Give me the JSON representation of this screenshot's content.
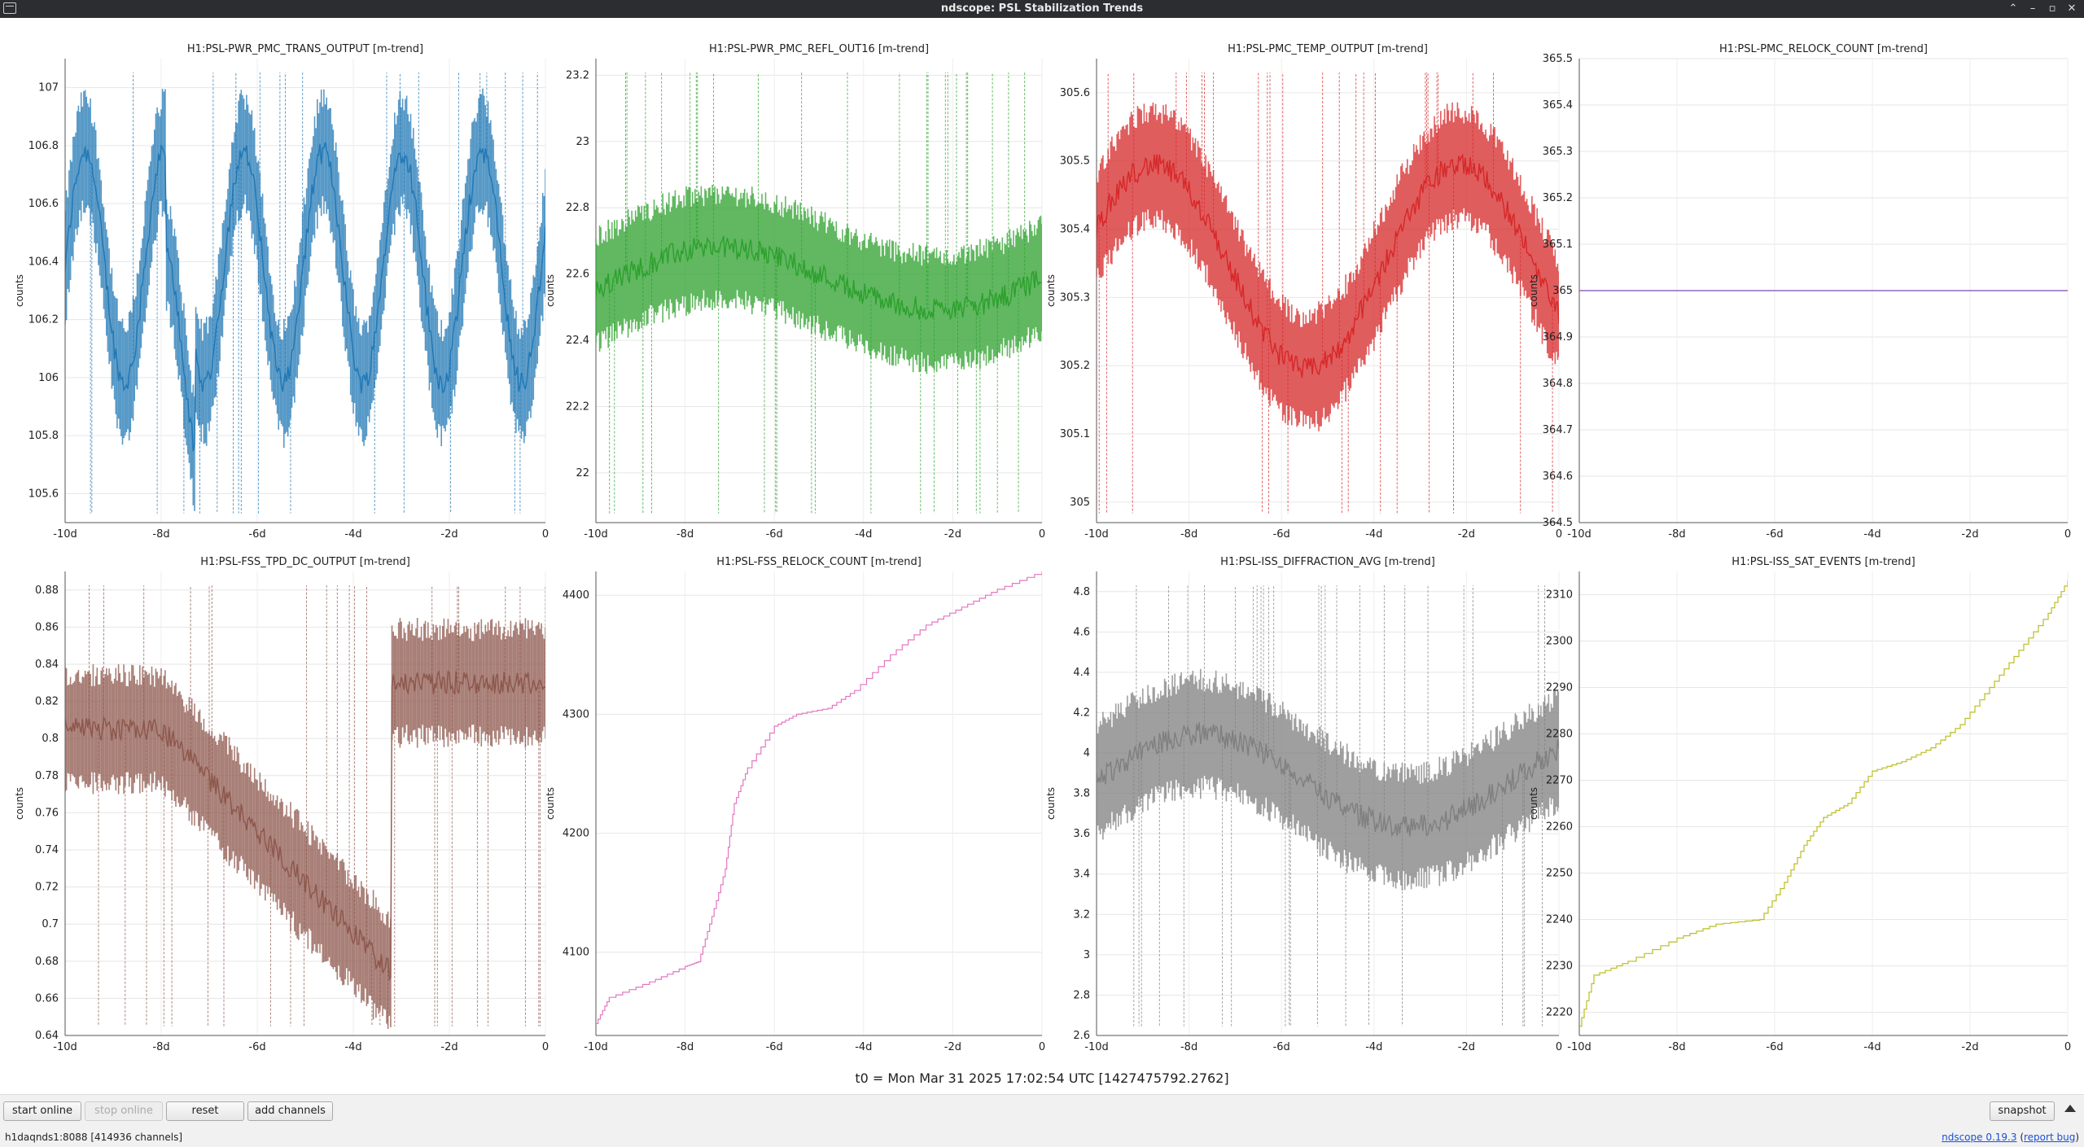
{
  "window": {
    "title": "ndscope: PSL Stabilization Trends",
    "buttons": [
      "⌃",
      "–",
      "▫",
      "✕"
    ]
  },
  "plots": [
    {
      "title": "H1:PSL-PWR_PMC_TRANS_OUTPUT [m-trend]",
      "ylabel": "counts",
      "color": "#1f77b4",
      "style": "dense",
      "ylim": [
        105.5,
        107.1
      ],
      "yticks": [
        "105.6",
        "105.8",
        "106",
        "106.2",
        "106.4",
        "106.6",
        "106.8",
        "107"
      ],
      "xticks": [
        "-10d",
        "-8d",
        "-6d",
        "-4d",
        "-2d",
        "0"
      ]
    },
    {
      "title": "H1:PSL-PWR_PMC_REFL_OUT16 [m-trend]",
      "ylabel": "counts",
      "color": "#2ca02c",
      "style": "dense",
      "ylim": [
        21.85,
        23.25
      ],
      "yticks": [
        "22",
        "22.2",
        "22.4",
        "22.6",
        "22.8",
        "23",
        "23.2"
      ],
      "xticks": [
        "-10d",
        "-8d",
        "-6d",
        "-4d",
        "-2d",
        "0"
      ]
    },
    {
      "title": "H1:PSL-PMC_TEMP_OUTPUT [m-trend]",
      "ylabel": "counts",
      "color": "#d62728",
      "style": "dense",
      "ylim": [
        304.97,
        305.65
      ],
      "yticks": [
        "305",
        "305.1",
        "305.2",
        "305.3",
        "305.4",
        "305.5",
        "305.6"
      ],
      "xticks": [
        "-10d",
        "-8d",
        "-6d",
        "-4d",
        "-2d",
        "0"
      ]
    },
    {
      "title": "H1:PSL-PMC_RELOCK_COUNT [m-trend]",
      "ylabel": "counts",
      "color": "#9467bd",
      "style": "flat",
      "ylim": [
        364.5,
        365.5
      ],
      "yticks": [
        "364.5",
        "364.6",
        "364.7",
        "364.8",
        "364.9",
        "365",
        "365.1",
        "365.2",
        "365.3",
        "365.4",
        "365.5"
      ],
      "xticks": [
        "-10d",
        "-8d",
        "-6d",
        "-4d",
        "-2d",
        "0"
      ],
      "value": 365
    },
    {
      "title": "H1:PSL-FSS_TPD_DC_OUTPUT [m-trend]",
      "ylabel": "counts",
      "color": "#8c564b",
      "style": "dense",
      "ylim": [
        0.64,
        0.89
      ],
      "yticks": [
        "0.64",
        "0.66",
        "0.68",
        "0.7",
        "0.72",
        "0.74",
        "0.76",
        "0.78",
        "0.8",
        "0.82",
        "0.84",
        "0.86",
        "0.88"
      ],
      "xticks": [
        "-10d",
        "-8d",
        "-6d",
        "-4d",
        "-2d",
        "0"
      ]
    },
    {
      "title": "H1:PSL-FSS_RELOCK_COUNT [m-trend]",
      "ylabel": "counts",
      "color": "#e377c2",
      "style": "step",
      "ylim": [
        4030,
        4420
      ],
      "yticks": [
        "4100",
        "4200",
        "4300",
        "4400"
      ],
      "xticks": [
        "-10d",
        "-8d",
        "-6d",
        "-4d",
        "-2d",
        "0"
      ]
    },
    {
      "title": "H1:PSL-ISS_DIFFRACTION_AVG [m-trend]",
      "ylabel": "counts",
      "color": "#7f7f7f",
      "style": "dense",
      "ylim": [
        2.6,
        4.9
      ],
      "yticks": [
        "2.6",
        "2.8",
        "3",
        "3.2",
        "3.4",
        "3.6",
        "3.8",
        "4",
        "4.2",
        "4.4",
        "4.6",
        "4.8"
      ],
      "xticks": [
        "-10d",
        "-8d",
        "-6d",
        "-4d",
        "-2d",
        "0"
      ]
    },
    {
      "title": "H1:PSL-ISS_SAT_EVENTS [m-trend]",
      "ylabel": "counts",
      "color": "#bcbd22",
      "style": "step",
      "ylim": [
        2215,
        2315
      ],
      "yticks": [
        "2220",
        "2230",
        "2240",
        "2250",
        "2260",
        "2270",
        "2280",
        "2290",
        "2300",
        "2310"
      ],
      "xticks": [
        "-10d",
        "-8d",
        "-6d",
        "-4d",
        "-2d",
        "0"
      ]
    }
  ],
  "t0_label": "t0 = Mon Mar 31 2025 17:02:54 UTC [1427475792.2762]",
  "toolbar": {
    "start_online": "start online",
    "stop_online": "stop online",
    "reset": "reset",
    "add_channels": "add channels",
    "snapshot": "snapshot"
  },
  "status": {
    "server": "h1daqnds1:8088  [414936 channels]",
    "version_link": "ndscope 0.19.3",
    "report_link": "report bug"
  }
}
